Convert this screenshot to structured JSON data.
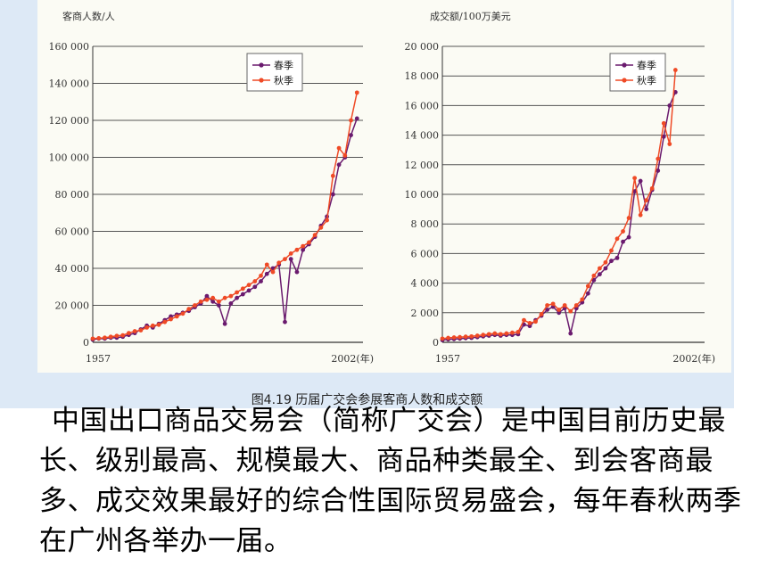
{
  "caption": "图4.19   历届广交会参展客商人数和成交额",
  "description": "中国出口商品交易会（简称广交会）是中国目前历史最长、级别最高、规模最大、商品种类最全、到会客商最多、成交效果最好的综合性国际贸易盛会，每年春秋两季在广州各举办一届。",
  "colors": {
    "spring": "#6a1a6e",
    "autumn": "#ef4a26",
    "grid": "#555555",
    "figure_bg": "#dde9f6"
  },
  "chart_data": [
    {
      "type": "line",
      "ylabel": "客商人数/人",
      "xtick_labels": [
        "1957",
        "2002(年)"
      ],
      "x_range": [
        1957,
        2002
      ],
      "ylim": [
        0,
        160000
      ],
      "yticks": [
        0,
        20000,
        40000,
        60000,
        80000,
        100000,
        120000,
        140000,
        160000
      ],
      "ytick_labels": [
        "0",
        "20 000",
        "40 000",
        "60 000",
        "80 000",
        "100 000",
        "120 000",
        "140 000",
        "160 000"
      ],
      "grid": true,
      "legend": "top-left",
      "x": [
        1957,
        1958,
        1959,
        1960,
        1961,
        1962,
        1963,
        1964,
        1965,
        1966,
        1967,
        1968,
        1969,
        1970,
        1971,
        1972,
        1973,
        1974,
        1975,
        1976,
        1977,
        1978,
        1979,
        1980,
        1981,
        1982,
        1983,
        1984,
        1985,
        1986,
        1987,
        1988,
        1989,
        1990,
        1991,
        1992,
        1993,
        1994,
        1995,
        1996,
        1997,
        1998,
        1999,
        2000,
        2001,
        2002
      ],
      "series": [
        {
          "name": "春季",
          "values": [
            1500,
            2000,
            2000,
            2500,
            2500,
            3000,
            4000,
            5000,
            7000,
            9000,
            8000,
            10000,
            12000,
            14000,
            15000,
            16000,
            17000,
            19000,
            21000,
            25000,
            22000,
            20000,
            10000,
            21000,
            24000,
            26000,
            28000,
            30000,
            33000,
            37000,
            40000,
            42000,
            11000,
            45000,
            38000,
            50000,
            53000,
            57000,
            63000,
            68000,
            80000,
            96000,
            100000,
            112000,
            121000,
            null
          ]
        },
        {
          "name": "秋季",
          "values": [
            2000,
            2200,
            2500,
            3000,
            3500,
            3800,
            5000,
            6000,
            6500,
            8000,
            9000,
            9500,
            11000,
            12500,
            14000,
            15500,
            18000,
            20000,
            22000,
            23000,
            24000,
            22000,
            24000,
            25000,
            27000,
            29000,
            31000,
            33000,
            36000,
            42000,
            38000,
            43000,
            45000,
            48000,
            50000,
            52000,
            54000,
            58000,
            62000,
            66000,
            90000,
            105000,
            101000,
            120000,
            135000,
            null
          ]
        }
      ]
    },
    {
      "type": "line",
      "ylabel": "成交额/100万美元",
      "xtick_labels": [
        "1957",
        "2002(年)"
      ],
      "x_range": [
        1957,
        2002
      ],
      "ylim": [
        0,
        20000
      ],
      "yticks": [
        0,
        2000,
        4000,
        6000,
        8000,
        10000,
        12000,
        14000,
        16000,
        18000,
        20000
      ],
      "ytick_labels": [
        "0",
        "2 000",
        "4 000",
        "6 000",
        "8 000",
        "10 000",
        "12 000",
        "14 000",
        "16 000",
        "18 000",
        "20 000"
      ],
      "grid": true,
      "legend": "top-right",
      "x": [
        1957,
        1958,
        1959,
        1960,
        1961,
        1962,
        1963,
        1964,
        1965,
        1966,
        1967,
        1968,
        1969,
        1970,
        1971,
        1972,
        1973,
        1974,
        1975,
        1976,
        1977,
        1978,
        1979,
        1980,
        1981,
        1982,
        1983,
        1984,
        1985,
        1986,
        1987,
        1988,
        1989,
        1990,
        1991,
        1992,
        1993,
        1994,
        1995,
        1996,
        1997,
        1998,
        1999,
        2000,
        2001,
        2002
      ],
      "series": [
        {
          "name": "春季",
          "values": [
            150,
            200,
            220,
            250,
            280,
            300,
            350,
            400,
            450,
            500,
            450,
            500,
            500,
            550,
            1200,
            1100,
            1500,
            1800,
            2200,
            2400,
            2000,
            2300,
            600,
            2300,
            2700,
            3300,
            4200,
            4600,
            5000,
            5500,
            5700,
            6800,
            7100,
            10200,
            10900,
            9000,
            10300,
            11600,
            13900,
            16000,
            16900,
            null,
            null,
            null,
            null,
            null
          ]
        },
        {
          "name": "秋季",
          "values": [
            250,
            300,
            330,
            350,
            380,
            400,
            450,
            500,
            550,
            600,
            550,
            600,
            650,
            700,
            1500,
            1300,
            1400,
            1900,
            2500,
            2600,
            2200,
            2500,
            2100,
            2500,
            2900,
            3800,
            4500,
            5000,
            5400,
            6200,
            7000,
            7500,
            8400,
            11100,
            8600,
            9600,
            10400,
            12400,
            14800,
            13400,
            18400,
            null,
            null,
            null,
            null,
            null
          ]
        }
      ]
    }
  ]
}
